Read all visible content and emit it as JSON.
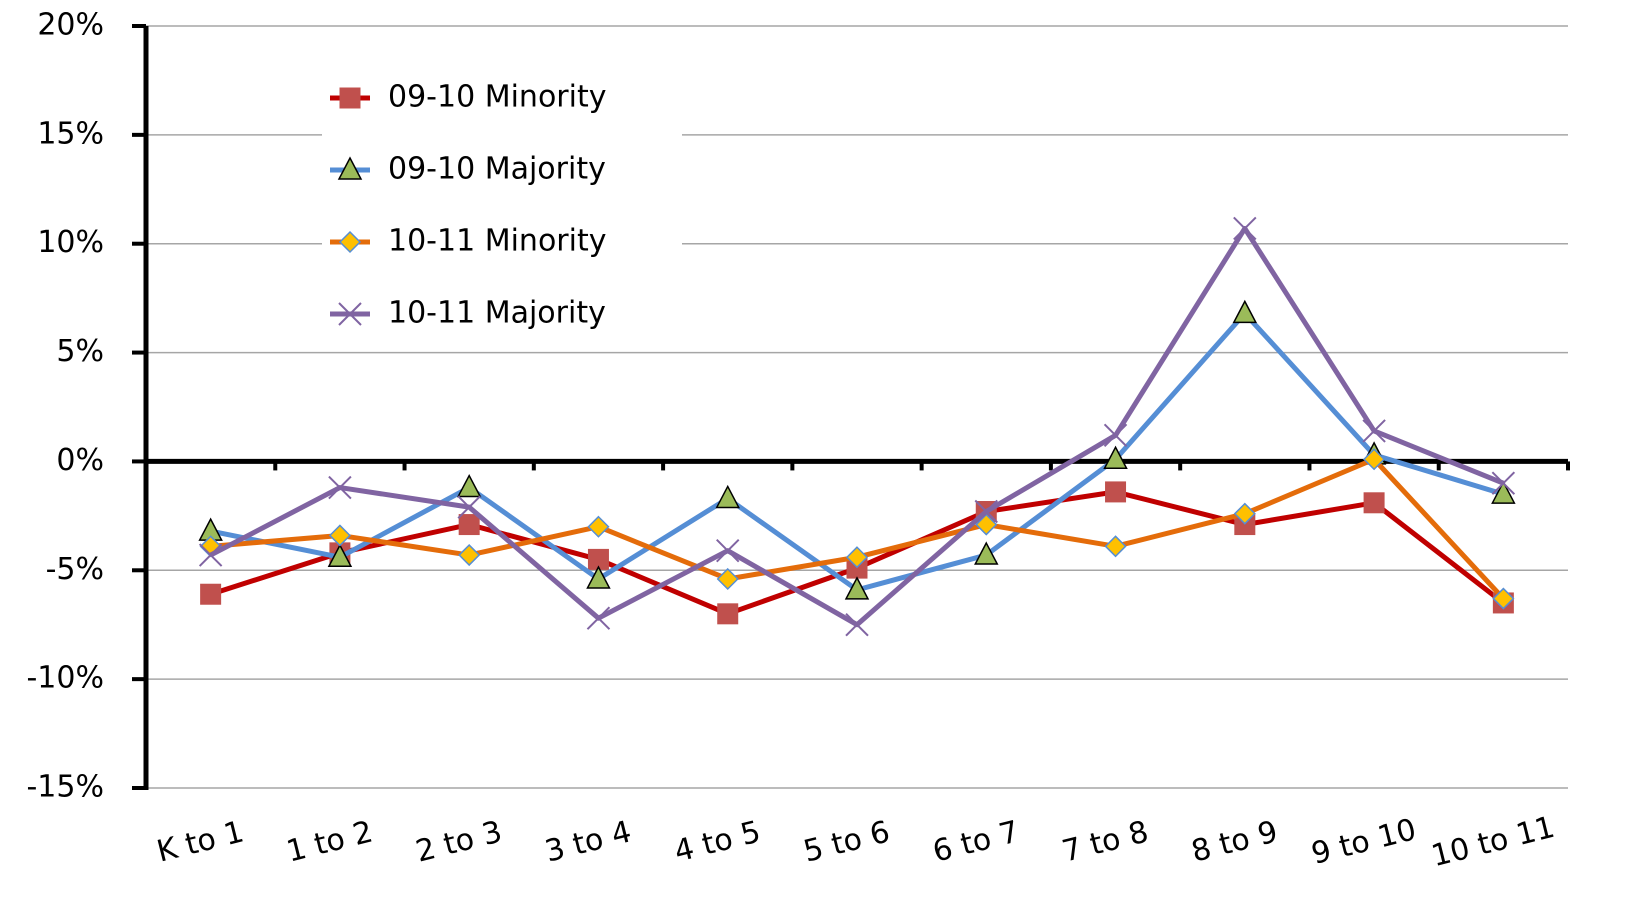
{
  "chart_data": {
    "type": "line",
    "categories": [
      "K to 1",
      "1 to 2",
      "2 to 3",
      "3 to 4",
      "4 to 5",
      "5 to 6",
      "6 to 7",
      "7 to 8",
      "8 to 9",
      "9 to 10",
      "10 to 11"
    ],
    "series": [
      {
        "name": "09-10 Minority",
        "color": "#c00000",
        "marker": "square",
        "marker_color": "#c0504d",
        "values": [
          -6.1,
          -4.2,
          -2.9,
          -4.5,
          -7.0,
          -4.9,
          -2.3,
          -1.4,
          -2.9,
          -1.9,
          -6.5
        ]
      },
      {
        "name": "09-10 Majority",
        "color": "#558ed5",
        "marker": "triangle",
        "marker_color": "#9bbb59",
        "values": [
          -3.2,
          -4.4,
          -1.2,
          -5.4,
          -1.7,
          -5.9,
          -4.3,
          0.1,
          6.8,
          0.3,
          -1.5
        ]
      },
      {
        "name": "10-11 Minority",
        "color": "#e46c0a",
        "marker": "diamond",
        "marker_color": "#ffc000",
        "values": [
          -3.9,
          -3.4,
          -4.3,
          -3.0,
          -5.4,
          -4.4,
          -2.9,
          -3.9,
          -2.4,
          0.1,
          -6.3
        ]
      },
      {
        "name": "10-11 Majority",
        "color": "#8064a2",
        "marker": "x",
        "marker_color": "#8064a2",
        "values": [
          -4.3,
          -1.2,
          -2.1,
          -7.2,
          -4.1,
          -7.5,
          -2.3,
          1.2,
          10.7,
          1.4,
          -1.0
        ]
      }
    ],
    "ylim": [
      -15,
      20
    ],
    "yticks": [
      {
        "value": -15,
        "label": "-15%"
      },
      {
        "value": -10,
        "label": "-10%"
      },
      {
        "value": -5,
        "label": "-5%"
      },
      {
        "value": 0,
        "label": "0%"
      },
      {
        "value": 5,
        "label": "5%"
      },
      {
        "value": 10,
        "label": "10%"
      },
      {
        "value": 15,
        "label": "15%"
      },
      {
        "value": 20,
        "label": "20%"
      }
    ],
    "grid": true,
    "legend": "upper left"
  }
}
